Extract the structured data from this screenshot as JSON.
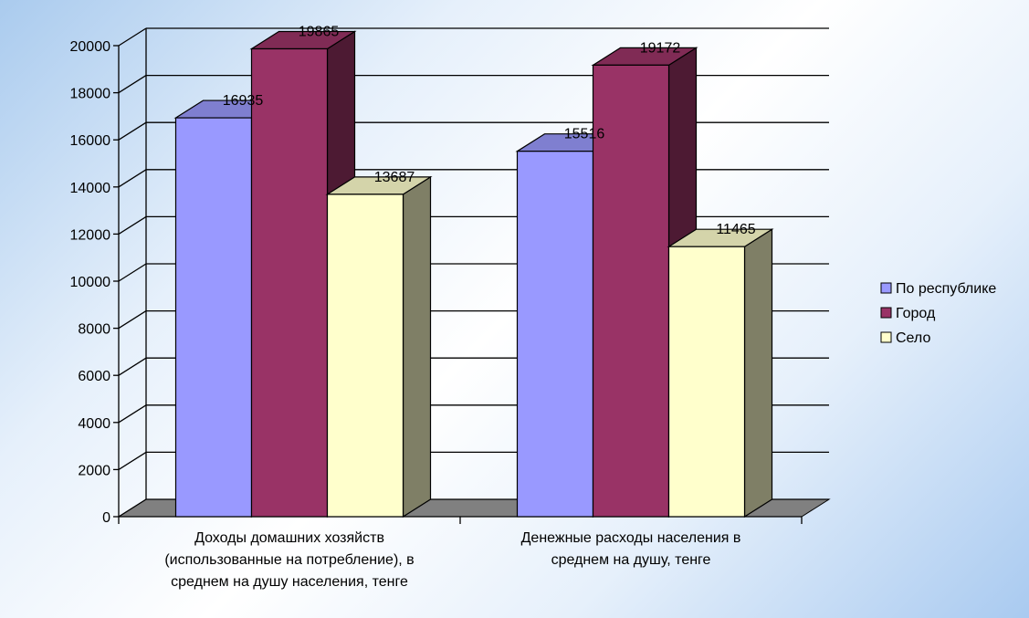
{
  "chart_data": {
    "type": "bar",
    "categories": [
      [
        "Доходы домашних хозяйств",
        "(использованные на потребление), в",
        "среднем на душу населения, тенге"
      ],
      [
        "Денежные расходы населения в",
        "среднем на душу, тенге"
      ]
    ],
    "series": [
      {
        "name": "По республике",
        "values": [
          16935,
          15516
        ],
        "color": "#9999ff"
      },
      {
        "name": "Город",
        "values": [
          19865,
          19172
        ],
        "color": "#993366"
      },
      {
        "name": "Село",
        "values": [
          13687,
          11465
        ],
        "color": "#ffffcc"
      }
    ],
    "ylim": [
      0,
      20000
    ],
    "yticks": [
      0,
      2000,
      4000,
      6000,
      8000,
      10000,
      12000,
      14000,
      16000,
      18000,
      20000
    ],
    "grid": true,
    "legend": "right",
    "style_3d": true,
    "floor_color": "#808080",
    "side_colors": [
      "#5f5fa0",
      "#4d1a33",
      "#7f7f66"
    ],
    "top_colors": [
      "#7f7fd0",
      "#802b55",
      "#d4d4aa"
    ]
  }
}
